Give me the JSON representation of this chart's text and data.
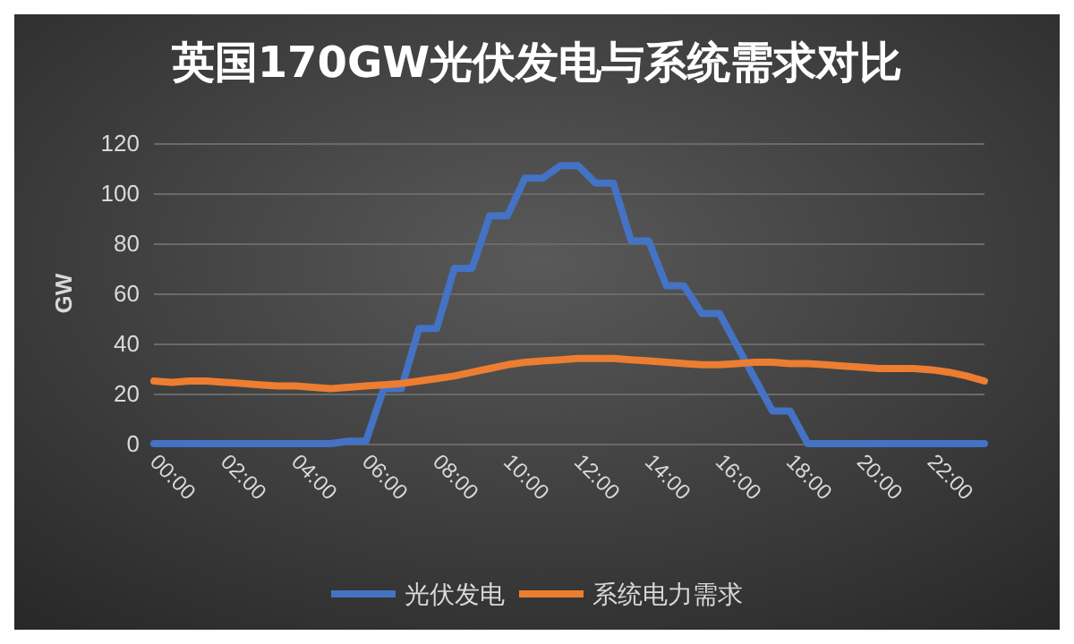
{
  "chart_data": {
    "type": "line",
    "title": "英国170GW光伏发电与系统需求对比",
    "ylabel": "GW",
    "categories": [
      "00:00",
      null,
      null,
      null,
      "02:00",
      null,
      null,
      null,
      "04:00",
      null,
      null,
      null,
      "06:00",
      null,
      null,
      null,
      "08:00",
      null,
      null,
      null,
      "10:00",
      null,
      null,
      null,
      "12:00",
      null,
      null,
      null,
      "14:00",
      null,
      null,
      null,
      "16:00",
      null,
      null,
      null,
      "18:00",
      null,
      null,
      null,
      "20:00",
      null,
      null,
      null,
      "22:00",
      null,
      null,
      null
    ],
    "series": [
      {
        "name": "光伏发电",
        "color": "#4472c4",
        "values": [
          0,
          0,
          0,
          0,
          0,
          0,
          0,
          0,
          0,
          0,
          0,
          1,
          1,
          22,
          22,
          46,
          46,
          70,
          70,
          91,
          91,
          106,
          106,
          111,
          111,
          104,
          104,
          81,
          81,
          63,
          63,
          52,
          52,
          39,
          26,
          13,
          13,
          0,
          0,
          0,
          0,
          0,
          0,
          0,
          0,
          0,
          0,
          0
        ]
      },
      {
        "name": "系统电力需求",
        "color": "#ed7d31",
        "values": [
          25,
          24.5,
          25,
          25,
          24.5,
          24,
          23.5,
          23,
          23,
          22.5,
          22,
          22.5,
          23,
          23.5,
          24,
          25,
          26,
          27,
          28.5,
          30,
          31.5,
          32.5,
          33,
          33.5,
          34,
          34,
          34,
          33.5,
          33,
          32.5,
          32,
          31.5,
          31.5,
          32,
          32.5,
          32.5,
          32,
          32,
          31.5,
          31,
          30.5,
          30,
          30,
          30,
          29.5,
          28.5,
          27,
          25
        ]
      }
    ],
    "ylim": [
      0,
      120
    ],
    "yticks": [
      0,
      20,
      40,
      60,
      80,
      100,
      120
    ],
    "grid": "y",
    "legend": "bottom",
    "marker": "none",
    "line_style": "solid"
  }
}
